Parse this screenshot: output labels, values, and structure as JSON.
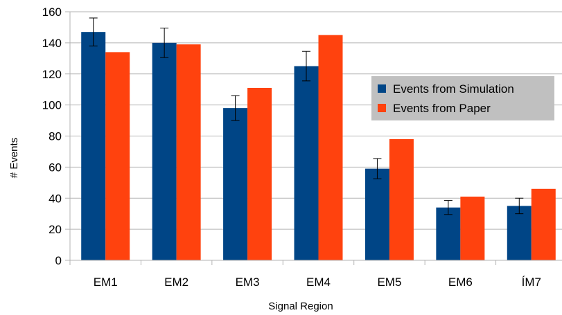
{
  "chart_data": {
    "type": "bar",
    "xlabel": "Signal Region",
    "ylabel": "# Events",
    "ylim": [
      0,
      160
    ],
    "yticks": [
      0,
      20,
      40,
      60,
      80,
      100,
      120,
      140,
      160
    ],
    "grid": true,
    "legend_position": "right",
    "categories": [
      "EM1",
      "EM2",
      "EM3",
      "EM4",
      "EM5",
      "EM6",
      "ÍM7"
    ],
    "series": [
      {
        "name": "Events from Simulation",
        "color": "#004586",
        "values": [
          147,
          140,
          98,
          125,
          59,
          34,
          35
        ],
        "error": [
          9,
          9.5,
          8,
          9.5,
          6.5,
          4.5,
          5
        ]
      },
      {
        "name": "Events from Paper",
        "color": "#ff420e",
        "values": [
          134,
          139,
          111,
          145,
          78,
          41,
          46
        ]
      }
    ]
  }
}
